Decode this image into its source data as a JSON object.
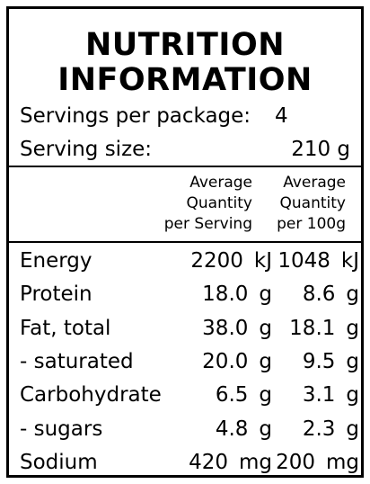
{
  "title": [
    "NUTRITION",
    "INFORMATION"
  ],
  "servings_label": "Servings per package:",
  "servings_value": "4",
  "serving_size_label": "Serving size:",
  "serving_size_value": "210 g",
  "columns": [
    [
      "Average",
      "Quantity",
      "per Serving"
    ],
    [
      "Average",
      "Quantity",
      "per 100g"
    ]
  ],
  "rows": [
    {
      "name": "Energy",
      "per_serving": "2200",
      "per_serving_unit": "kJ",
      "per_100g": "1048",
      "per_100g_unit": "kJ"
    },
    {
      "name": "Protein",
      "per_serving": "18.0",
      "per_serving_unit": "g",
      "per_100g": "8.6",
      "per_100g_unit": "g"
    },
    {
      "name": "Fat, total",
      "per_serving": "38.0",
      "per_serving_unit": "g",
      "per_100g": "18.1",
      "per_100g_unit": "g"
    },
    {
      "name": "- saturated",
      "per_serving": "20.0",
      "per_serving_unit": "g",
      "per_100g": "9.5",
      "per_100g_unit": "g"
    },
    {
      "name": "Carbohydrate",
      "per_serving": "6.5",
      "per_serving_unit": "g",
      "per_100g": "3.1",
      "per_100g_unit": "g"
    },
    {
      "name": "- sugars",
      "per_serving": "4.8",
      "per_serving_unit": "g",
      "per_100g": "2.3",
      "per_100g_unit": "g"
    },
    {
      "name": "Sodium",
      "per_serving": "420",
      "per_serving_unit": "mg",
      "per_100g": "200",
      "per_100g_unit": "mg"
    }
  ]
}
